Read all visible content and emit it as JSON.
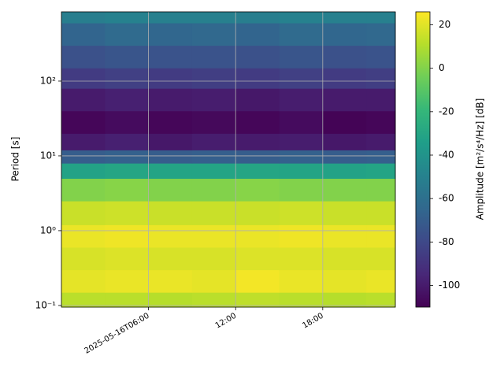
{
  "chart_data": {
    "type": "heatmap",
    "y_label": "Period [s]",
    "colorbar_label": "Amplitude [m²/s⁴/Hz] [dB]",
    "colormap": "viridis",
    "x": [
      "2025-05-16T00:00",
      "2025-05-16T03:00",
      "2025-05-16T06:00",
      "2025-05-16T09:00",
      "2025-05-16T12:00",
      "2025-05-16T15:00",
      "2025-05-16T18:00",
      "2025-05-16T21:00",
      "2025-05-16T23:00"
    ],
    "y": [
      0.095,
      0.15,
      0.3,
      0.6,
      1.2,
      2.5,
      5,
      8,
      12,
      20,
      40,
      80,
      150,
      300,
      600,
      844
    ],
    "z": [
      [
        12,
        12,
        11,
        12,
        13,
        12,
        11,
        12
      ],
      [
        21,
        22,
        22,
        21,
        24,
        22,
        21,
        22
      ],
      [
        18,
        19,
        18,
        18,
        19,
        19,
        18,
        18
      ],
      [
        22,
        23,
        22,
        22,
        22,
        23,
        22,
        22
      ],
      [
        15,
        16,
        15,
        15,
        15,
        16,
        15,
        15
      ],
      [
        0,
        1,
        0,
        0,
        1,
        0,
        0,
        0
      ],
      [
        -32,
        -30,
        -31,
        -31,
        -30,
        -31,
        -32,
        -31
      ],
      [
        -70,
        -68,
        -70,
        -69,
        -70,
        -68,
        -70,
        -69
      ],
      [
        -100,
        -98,
        -101,
        -99,
        -100,
        -99,
        -101,
        -100
      ],
      [
        -108,
        -106,
        -108,
        -107,
        -108,
        -106,
        -109,
        -108
      ],
      [
        -100,
        -98,
        -100,
        -99,
        -101,
        -99,
        -100,
        -100
      ],
      [
        -86,
        -84,
        -86,
        -85,
        -86,
        -84,
        -86,
        -85
      ],
      [
        -76,
        -74,
        -75,
        -75,
        -76,
        -74,
        -76,
        -75
      ],
      [
        -66,
        -63,
        -65,
        -64,
        -66,
        -63,
        -65,
        -64
      ],
      [
        -52,
        -50,
        -51,
        -51,
        -52,
        -50,
        -51,
        -51
      ]
    ],
    "xlim": [
      "2025-05-16T00:00",
      "2025-05-16T23:00"
    ],
    "xticks": [
      {
        "value": "2025-05-16T06:00",
        "label": "2025-05-16T06:00"
      },
      {
        "value": "2025-05-16T12:00",
        "label": "12:00"
      },
      {
        "value": "2025-05-16T18:00",
        "label": "18:00"
      }
    ],
    "ylim": [
      0.095,
      844
    ],
    "yscale": "log",
    "yticks": [
      {
        "value": 0.1,
        "label": "10⁻¹"
      },
      {
        "value": 1,
        "label": "10⁰"
      },
      {
        "value": 10,
        "label": "10¹"
      },
      {
        "value": 100,
        "label": "10²"
      }
    ],
    "clim": [
      -110,
      26
    ],
    "cticks": [
      -100,
      -80,
      -60,
      -40,
      -20,
      0,
      20
    ],
    "grid": true
  }
}
